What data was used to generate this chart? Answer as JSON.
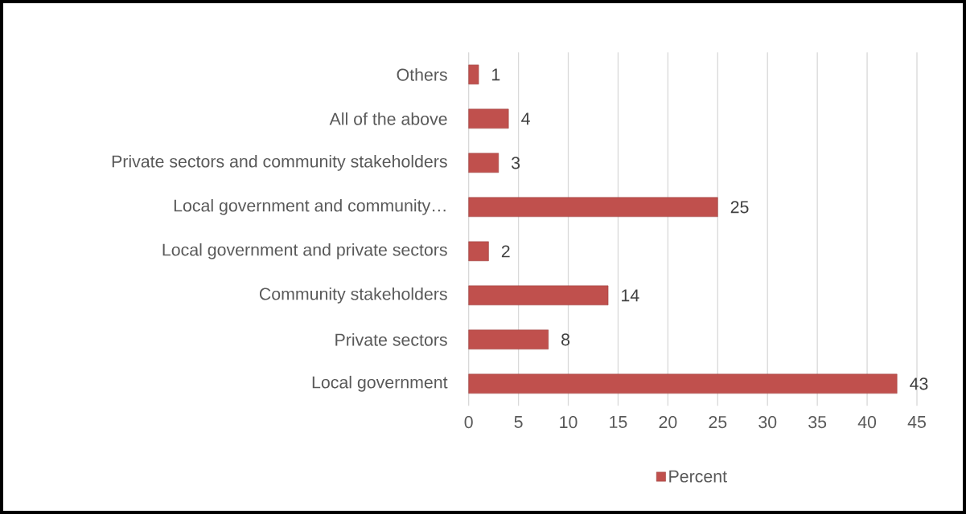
{
  "chart_data": {
    "type": "bar",
    "orientation": "horizontal",
    "categories": [
      "Others",
      "All of the above",
      "Private sectors and community stakeholders",
      "Local government and community…",
      "Local government and private sectors",
      "Community stakeholders",
      "Private sectors",
      "Local government"
    ],
    "series": [
      {
        "name": "Percent",
        "color": "#c0504d",
        "values": [
          1,
          4,
          3,
          25,
          2,
          14,
          8,
          43
        ]
      }
    ],
    "xlim": [
      0,
      45
    ],
    "xticks": [
      0,
      5,
      10,
      15,
      20,
      25,
      30,
      35,
      40,
      45
    ],
    "grid": "x",
    "legend": "bottom",
    "data_labels": true
  }
}
